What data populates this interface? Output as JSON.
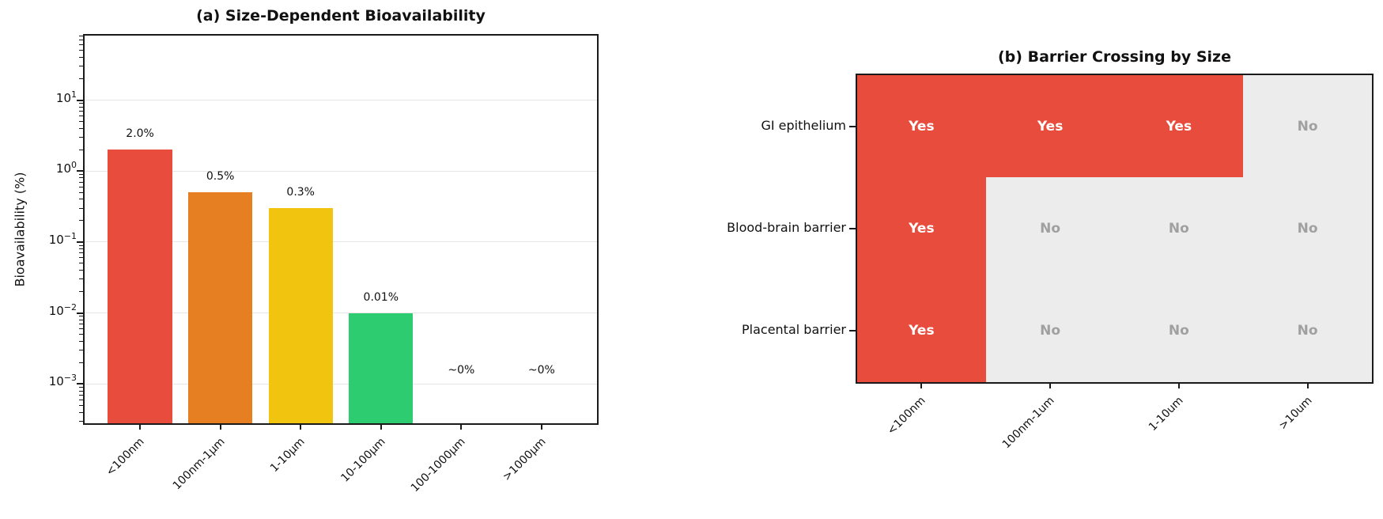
{
  "chart_data": [
    {
      "type": "bar",
      "title": "(a) Size-Dependent Bioavailability",
      "xlabel": "",
      "ylabel": "Bioavailability (%)",
      "yscale": "log",
      "ylim": [
        0.00028,
        81
      ],
      "ytick_exponents": [
        1,
        0,
        -1,
        -2,
        -3
      ],
      "grid": "horizontal-major",
      "legend": "none",
      "categories": [
        "<100nm",
        "100nm-1μm",
        "1-10μm",
        "10-100μm",
        "100-1000μm",
        ">1000μm"
      ],
      "values": [
        2.0,
        0.5,
        0.3,
        0.01,
        0,
        0
      ],
      "bar_labels": [
        "2.0%",
        "0.5%",
        "0.3%",
        "0.01%",
        "~0%",
        "~0%"
      ],
      "bar_colors": [
        "#e74c3c",
        "#e67e22",
        "#f1c40f",
        "#2ecc71",
        null,
        null
      ]
    },
    {
      "type": "heatmap",
      "title": "(b) Barrier Crossing by Size",
      "rows": [
        "GI epithelium",
        "Blood-brain barrier",
        "Placental barrier"
      ],
      "columns": [
        "<100nm",
        "100nm-1um",
        "1-10um",
        ">10um"
      ],
      "cells": [
        [
          "Yes",
          "Yes",
          "Yes",
          "No"
        ],
        [
          "Yes",
          "No",
          "No",
          "No"
        ],
        [
          "Yes",
          "No",
          "No",
          "No"
        ]
      ],
      "colors": {
        "yes_bg": "#e74c3c",
        "yes_text": "#ffffff",
        "no_bg": "#ececec",
        "no_text": "#a0a0a0",
        "border": "#1a1a1a"
      }
    }
  ]
}
